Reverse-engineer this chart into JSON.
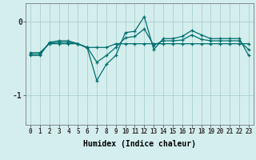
{
  "xlabel": "Humidex (Indice chaleur)",
  "x_values": [
    0,
    1,
    2,
    3,
    4,
    5,
    6,
    7,
    8,
    9,
    10,
    11,
    12,
    13,
    14,
    15,
    16,
    17,
    18,
    19,
    20,
    21,
    22,
    23
  ],
  "line1_y": [
    -0.42,
    -0.42,
    -0.3,
    -0.3,
    -0.3,
    -0.3,
    -0.35,
    -0.35,
    -0.35,
    -0.3,
    -0.3,
    -0.3,
    -0.3,
    -0.3,
    -0.3,
    -0.3,
    -0.3,
    -0.3,
    -0.3,
    -0.3,
    -0.3,
    -0.3,
    -0.3,
    -0.3
  ],
  "line2_y": [
    -0.46,
    -0.46,
    -0.28,
    -0.26,
    -0.26,
    -0.3,
    -0.36,
    -0.8,
    -0.58,
    -0.46,
    -0.15,
    -0.13,
    0.07,
    -0.38,
    -0.23,
    -0.23,
    -0.2,
    -0.12,
    -0.18,
    -0.23,
    -0.23,
    -0.23,
    -0.23,
    -0.46
  ],
  "line3_y": [
    -0.44,
    -0.44,
    -0.29,
    -0.28,
    -0.28,
    -0.3,
    -0.35,
    -0.55,
    -0.46,
    -0.35,
    -0.22,
    -0.2,
    -0.1,
    -0.32,
    -0.26,
    -0.26,
    -0.25,
    -0.18,
    -0.24,
    -0.26,
    -0.26,
    -0.26,
    -0.26,
    -0.38
  ],
  "line_color": "#007070",
  "bg_color": "#d4eeed",
  "grid_color": "#aacfce",
  "yticks": [
    0,
    -1
  ],
  "ylim": [
    -1.4,
    0.25
  ],
  "xlim": [
    -0.5,
    23.5
  ]
}
